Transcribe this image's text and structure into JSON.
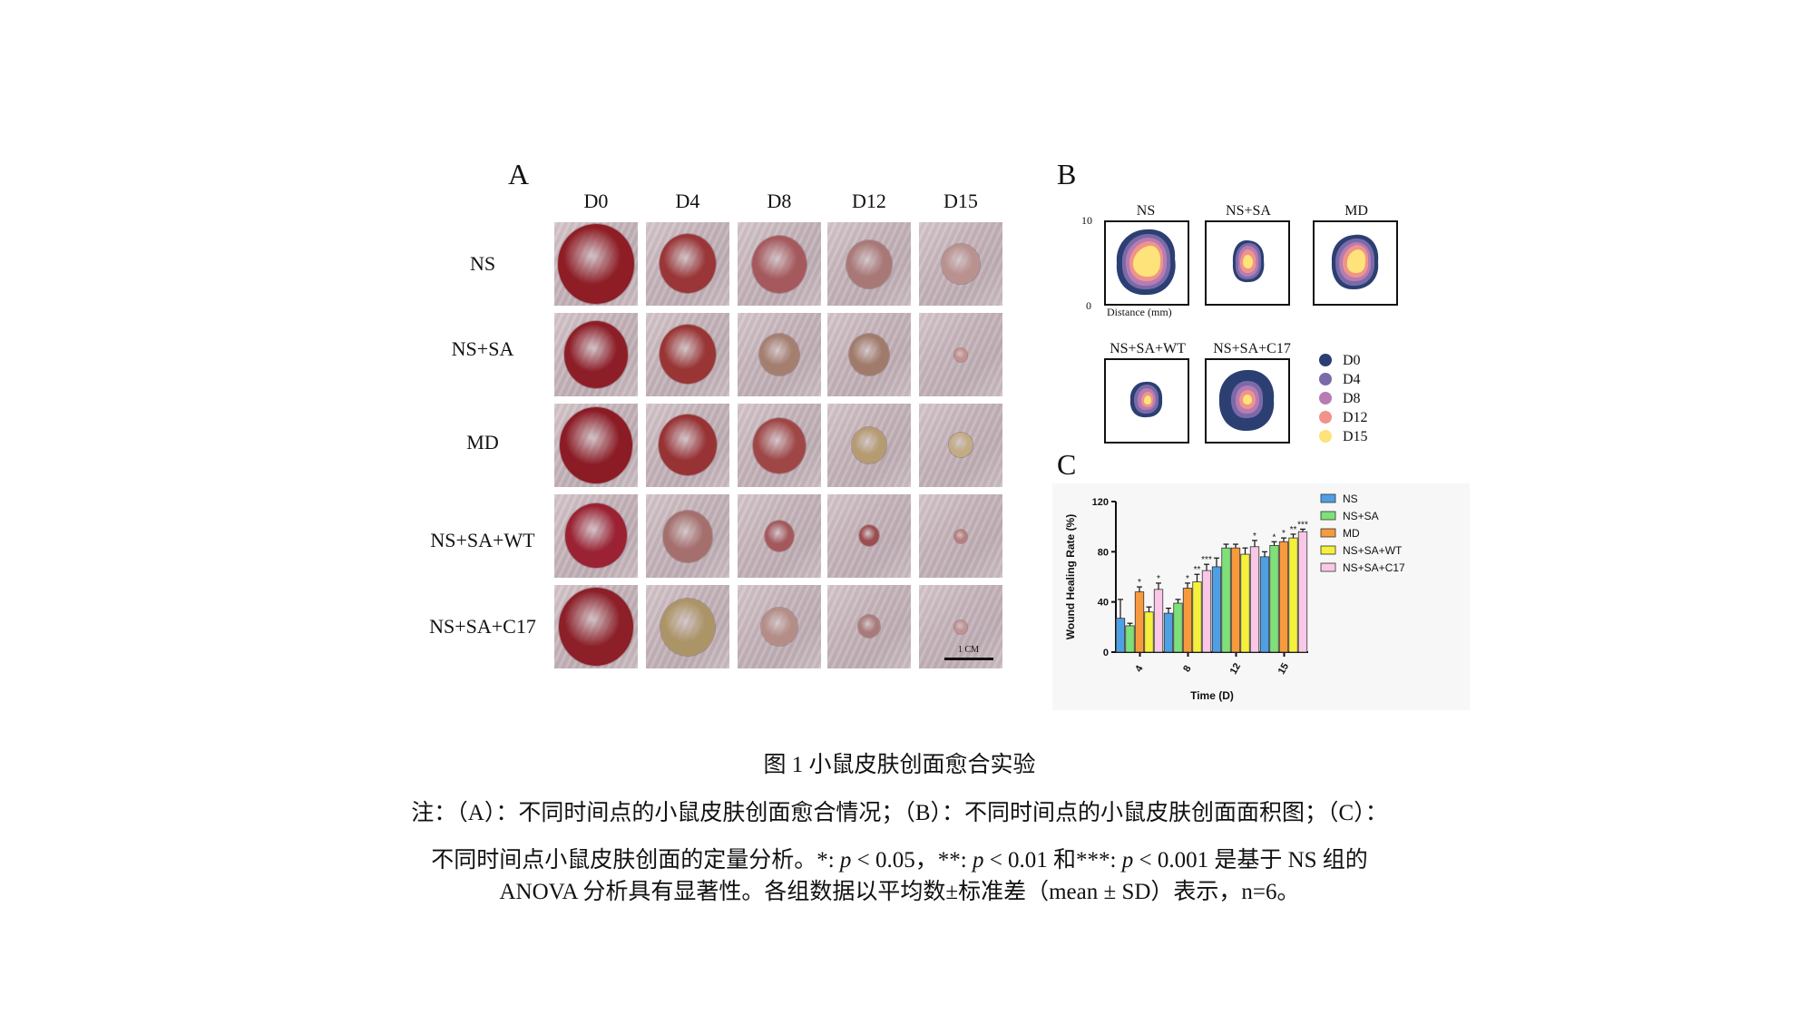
{
  "panel_a": {
    "letter": "A",
    "columns": [
      "D0",
      "D4",
      "D8",
      "D12",
      "D15"
    ],
    "rows": [
      "NS",
      "NS+SA",
      "MD",
      "NS+SA+WT",
      "NS+SA+C17"
    ],
    "scale_label": "1 CM"
  },
  "panel_b": {
    "letter": "B",
    "top_titles": [
      "NS",
      "NS+SA",
      "MD"
    ],
    "bottom_titles": [
      "NS+SA+WT",
      "NS+SA+C17"
    ],
    "y_top": "10",
    "y_bottom": "0",
    "x_label": "Distance (mm)",
    "legend": [
      {
        "label": "D0",
        "color": "#2b3f73"
      },
      {
        "label": "D4",
        "color": "#7b6aa8"
      },
      {
        "label": "D8",
        "color": "#b67cb3"
      },
      {
        "label": "D12",
        "color": "#f0948a"
      },
      {
        "label": "D15",
        "color": "#fde37a"
      }
    ]
  },
  "panel_c": {
    "letter": "C"
  },
  "chart_data": {
    "type": "bar",
    "title": "",
    "xlabel": "Time (D)",
    "ylabel": "Wound Healing Rate (%)",
    "ylim": [
      0,
      120
    ],
    "yticks": [
      0,
      40,
      80,
      120
    ],
    "categories": [
      "4",
      "8",
      "12",
      "15"
    ],
    "series": [
      {
        "name": "NS",
        "color": "#4f9fe3",
        "values": [
          27,
          31,
          68,
          76
        ],
        "errors": [
          15,
          4,
          7,
          4
        ],
        "stars": [
          "",
          "",
          "",
          ""
        ]
      },
      {
        "name": "NS+SA",
        "color": "#7fe07a",
        "values": [
          21,
          39,
          83,
          85
        ],
        "errors": [
          2,
          3,
          3,
          3
        ],
        "stars": [
          "",
          "",
          "",
          "*"
        ]
      },
      {
        "name": "MD",
        "color": "#f79a3e",
        "values": [
          48,
          51,
          83,
          88
        ],
        "errors": [
          4,
          4,
          3,
          3
        ],
        "stars": [
          "*",
          "*",
          "",
          "*"
        ]
      },
      {
        "name": "NS+SA+WT",
        "color": "#f5f03a",
        "values": [
          32,
          56,
          78,
          91
        ],
        "errors": [
          4,
          6,
          5,
          3
        ],
        "stars": [
          "",
          "**",
          "",
          "**"
        ]
      },
      {
        "name": "NS+SA+C17",
        "color": "#f8c8e6",
        "values": [
          50,
          65,
          84,
          96
        ],
        "errors": [
          5,
          5,
          5,
          2
        ],
        "stars": [
          "*",
          "***",
          "*",
          "***"
        ]
      }
    ]
  },
  "caption": {
    "title": "图 1 小鼠皮肤创面愈合实验",
    "line1": "注：（A）：不同时间点的小鼠皮肤创面愈合情况；（B）：不同时间点的小鼠皮肤创面面积图；（C）：",
    "line2_a": "不同时间点小鼠皮肤创面的定量分析。*: ",
    "line2_b": "p",
    "line2_c": " < 0.05，**: ",
    "line2_d": "p",
    "line2_e": " < 0.01 和***: ",
    "line2_f": "p",
    "line2_g": " < 0.001 是基于 NS 组的",
    "line3": "ANOVA 分析具有显著性。各组数据以平均数±标准差（mean ± SD）表示，n=6。"
  }
}
